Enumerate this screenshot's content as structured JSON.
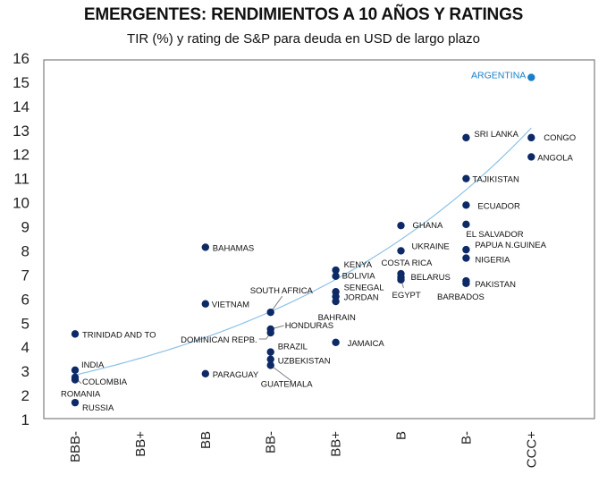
{
  "header": {
    "title": "EMERGENTES: RENDIMIENTOS A 10 AÑOS Y RATINGS",
    "subtitle": "TIR (%) y rating de S&P para deuda en USD de largo plazo"
  },
  "colors": {
    "dot": "#0d2a66",
    "highlight": "#1a7fc7",
    "trend": "#8ec3e6",
    "frame": "#7f7f7f",
    "leader": "#7f7f7f"
  },
  "chart_data": {
    "type": "scatter",
    "title": "EMERGENTES: RENDIMIENTOS A 10 AÑOS Y RATINGS",
    "subtitle": "TIR (%) y rating de S&P para deuda en USD de largo plazo",
    "xlabel": "",
    "ylabel": "",
    "categories": [
      "BBB-",
      "BB+",
      "BB",
      "BB-",
      "BB+",
      "B",
      "B-",
      "CCC+"
    ],
    "ylim": [
      1,
      16
    ],
    "yticks": [
      1,
      2,
      3,
      4,
      5,
      6,
      7,
      8,
      9,
      10,
      11,
      12,
      13,
      14,
      15,
      16
    ],
    "grid": false,
    "legend": "none",
    "trendline": {
      "type": "exponential",
      "from": {
        "x": 0,
        "y": 2.85
      },
      "to": {
        "x": 7,
        "y": 13.1
      }
    },
    "points": [
      {
        "name": "ARGENTINA",
        "x": 7,
        "y": 15.2,
        "highlight": true
      },
      {
        "name": "SRI LANKA",
        "x": 6,
        "y": 12.7
      },
      {
        "name": "CONGO",
        "x": 7,
        "y": 12.7
      },
      {
        "name": "ANGOLA",
        "x": 7,
        "y": 11.9
      },
      {
        "name": "TAJIKISTAN",
        "x": 6,
        "y": 11.0
      },
      {
        "name": "ECUADOR",
        "x": 6,
        "y": 9.9
      },
      {
        "name": "EL SALVADOR",
        "x": 6,
        "y": 9.1
      },
      {
        "name": "PAPUA N.GUINEA",
        "x": 6,
        "y": 8.05
      },
      {
        "name": "NIGERIA",
        "x": 6,
        "y": 7.7
      },
      {
        "name": "PAKISTAN",
        "x": 6,
        "y": 6.75
      },
      {
        "name": "BARBADOS",
        "x": 6,
        "y": 6.65
      },
      {
        "name": "GHANA",
        "x": 5,
        "y": 9.05
      },
      {
        "name": "UKRAINE",
        "x": 5,
        "y": 8.0
      },
      {
        "name": "COSTA RICA",
        "x": 5,
        "y": 7.05
      },
      {
        "name": "BELARUS",
        "x": 5,
        "y": 6.9
      },
      {
        "name": "EGYPT",
        "x": 5,
        "y": 6.8
      },
      {
        "name": "KENYA",
        "x": 4,
        "y": 7.2
      },
      {
        "name": "BOLIVIA",
        "x": 4,
        "y": 6.95
      },
      {
        "name": "SENEGAL",
        "x": 4,
        "y": 6.3
      },
      {
        "name": "JORDAN",
        "x": 4,
        "y": 6.1
      },
      {
        "name": "BAHRAIN",
        "x": 4,
        "y": 5.9
      },
      {
        "name": "JAMAICA",
        "x": 4,
        "y": 4.2
      },
      {
        "name": "SOUTH AFRICA",
        "x": 3,
        "y": 5.45
      },
      {
        "name": "HONDURAS",
        "x": 3,
        "y": 4.75
      },
      {
        "name": "DOMINICAN REPB.",
        "x": 3,
        "y": 4.6
      },
      {
        "name": "BRAZIL",
        "x": 3,
        "y": 3.8
      },
      {
        "name": "UZBEKISTAN",
        "x": 3,
        "y": 3.5
      },
      {
        "name": "GUATEMALA",
        "x": 3,
        "y": 3.25
      },
      {
        "name": "BAHAMAS",
        "x": 2,
        "y": 8.15
      },
      {
        "name": "VIETNAM",
        "x": 2,
        "y": 5.8
      },
      {
        "name": "PARAGUAY",
        "x": 2,
        "y": 2.9
      },
      {
        "name": "TRINIDAD AND TO",
        "x": 0,
        "y": 4.55
      },
      {
        "name": "INDIA",
        "x": 0,
        "y": 3.05
      },
      {
        "name": "COLOMBIA",
        "x": 0,
        "y": 2.75
      },
      {
        "name": "ROMANIA",
        "x": 0,
        "y": 2.65
      },
      {
        "name": "RUSSIA",
        "x": 0,
        "y": 1.7
      }
    ]
  }
}
